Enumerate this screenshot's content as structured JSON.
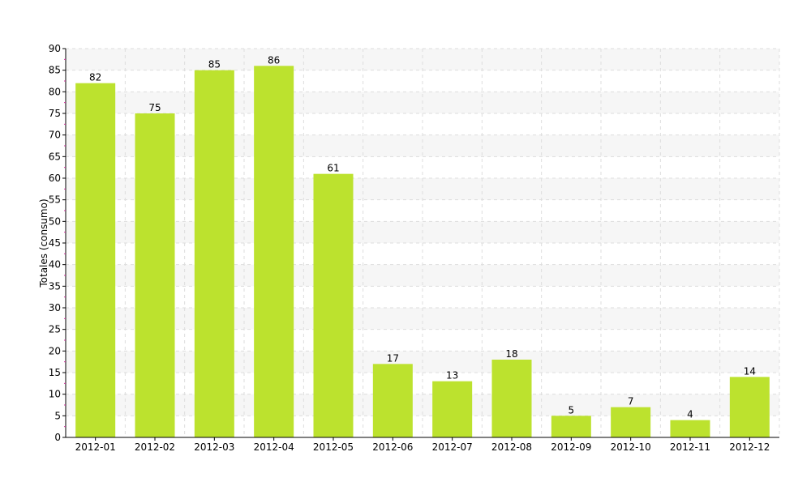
{
  "chart_data": {
    "type": "bar",
    "title": "",
    "xlabel": "",
    "ylabel": "Totales (consumo)",
    "ylim": [
      0,
      90
    ],
    "ytick_step": 5,
    "grid": true,
    "legend": "none",
    "categories": [
      "2012-01",
      "2012-02",
      "2012-03",
      "2012-04",
      "2012-05",
      "2012-06",
      "2012-07",
      "2012-08",
      "2012-09",
      "2012-10",
      "2012-11",
      "2012-12"
    ],
    "values": [
      82,
      75,
      85,
      86,
      61,
      17,
      13,
      18,
      5,
      7,
      4,
      14
    ],
    "colors": {
      "bar": "#bce22e",
      "band": "#f6f6f6",
      "grid": "#dddddd",
      "axis": "#000000",
      "minor_tick": "#cc3399"
    }
  }
}
